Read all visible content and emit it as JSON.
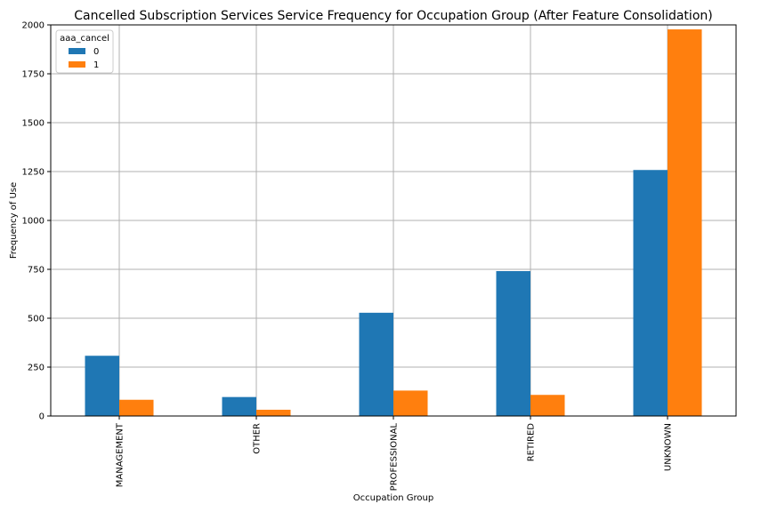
{
  "chart_data": {
    "type": "bar",
    "title": "Cancelled Subscription Services Service Frequency for Occupation Group (After Feature Consolidation)",
    "xlabel": "Occupation Group",
    "ylabel": "Frequency of Use",
    "categories": [
      "MANAGEMENT",
      "OTHER",
      "PROFESSIONAL",
      "RETIRED",
      "UNKNOWN"
    ],
    "series": [
      {
        "name": "0",
        "color": "#1f77b4",
        "values": [
          308,
          97,
          528,
          741,
          1258
        ]
      },
      {
        "name": "1",
        "color": "#ff7f0e",
        "values": [
          83,
          32,
          130,
          108,
          1977
        ]
      }
    ],
    "ylim": [
      0,
      2000
    ],
    "yticks": [
      0,
      250,
      500,
      750,
      1000,
      1250,
      1500,
      1750,
      2000
    ],
    "grid": true,
    "legend": {
      "title": "aaa_cancel",
      "placement": "top-left"
    }
  }
}
